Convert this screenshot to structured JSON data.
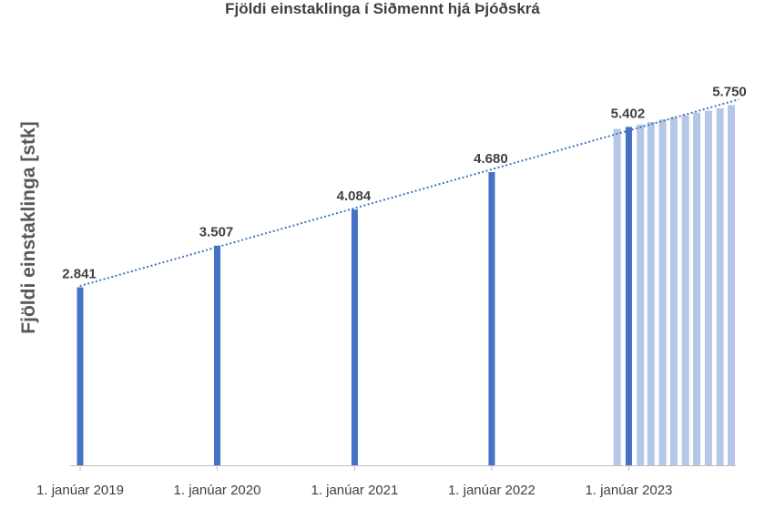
{
  "chart_data": {
    "type": "bar",
    "title": "Fjöldi einstaklinga í Siðmennt hjá Þjóðskrá",
    "ylabel": "Fjöldi einstaklinga [stk]",
    "x_start": "2019-01-01",
    "x_end": "2023-10-01",
    "tick_labels": [
      "1. janúar 2019",
      "1. janúar 2020",
      "1. janúar 2021",
      "1. janúar 2022",
      "1. janúar 2023"
    ],
    "ylim": [
      0,
      5800
    ],
    "grid": false,
    "trendline": "dotted-linear",
    "series": [
      {
        "color": "#4472c4",
        "points": [
          {
            "date": "2019-01-01",
            "value": 2841,
            "label": "2.841"
          },
          {
            "date": "2020-01-01",
            "value": 3507,
            "label": "3.507"
          },
          {
            "date": "2021-01-01",
            "value": 4084,
            "label": "4.084"
          },
          {
            "date": "2022-01-01",
            "value": 4680,
            "label": "4.680"
          },
          {
            "date": "2023-01-01",
            "value": 5402,
            "label": "5.402"
          }
        ]
      },
      {
        "color": "#b4c7e7",
        "points": [
          {
            "date": "2022-12-01",
            "value": 5370
          },
          {
            "date": "2023-02-01",
            "value": 5440
          },
          {
            "date": "2023-03-01",
            "value": 5480
          },
          {
            "date": "2023-04-01",
            "value": 5520
          },
          {
            "date": "2023-05-01",
            "value": 5560
          },
          {
            "date": "2023-06-01",
            "value": 5590
          },
          {
            "date": "2023-07-01",
            "value": 5630
          },
          {
            "date": "2023-08-01",
            "value": 5660
          },
          {
            "date": "2023-09-01",
            "value": 5700
          },
          {
            "date": "2023-10-01",
            "value": 5750,
            "label": "5.750"
          }
        ]
      }
    ]
  }
}
